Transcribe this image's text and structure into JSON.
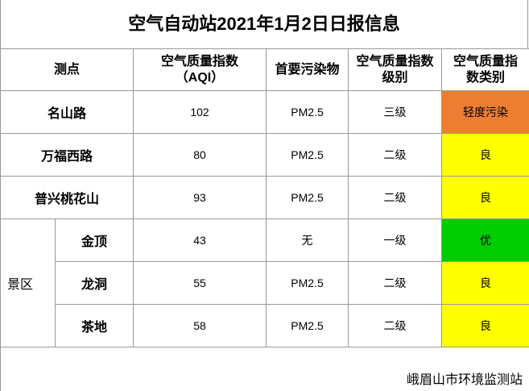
{
  "header": {
    "title": "空气自动站2021年1月2日日报信息"
  },
  "table": {
    "headers": [
      "测点",
      "空气质量指数\n（AQI）",
      "首要污染物",
      "空气质量指数\n级别",
      "空气质量指\n数类别"
    ],
    "rows": [
      {
        "site": "名山路",
        "aqi": 102,
        "pollutant": "PM2.5",
        "level": "三级",
        "category": "轻度污染",
        "color": "#ed7d31"
      },
      {
        "site": "万福西路",
        "aqi": 80,
        "pollutant": "PM2.5",
        "level": "二级",
        "category": "良",
        "color": "#ffff00"
      },
      {
        "site": "普兴桃花山",
        "aqi": 93,
        "pollutant": "PM2.5",
        "level": "二级",
        "category": "良",
        "color": "#ffff00"
      }
    ],
    "group": {
      "name": "景区",
      "rows": [
        {
          "site": "金顶",
          "aqi": 43,
          "pollutant": "无",
          "level": "一级",
          "category": "优",
          "color": "#00cc00"
        },
        {
          "site": "龙洞",
          "aqi": 55,
          "pollutant": "PM2.5",
          "level": "二级",
          "category": "良",
          "color": "#ffff00"
        },
        {
          "site": "茶地",
          "aqi": 58,
          "pollutant": "PM2.5",
          "level": "二级",
          "category": "良",
          "color": "#ffff00"
        }
      ]
    }
  },
  "footer": {
    "source": "峨眉山市环境监测站"
  }
}
